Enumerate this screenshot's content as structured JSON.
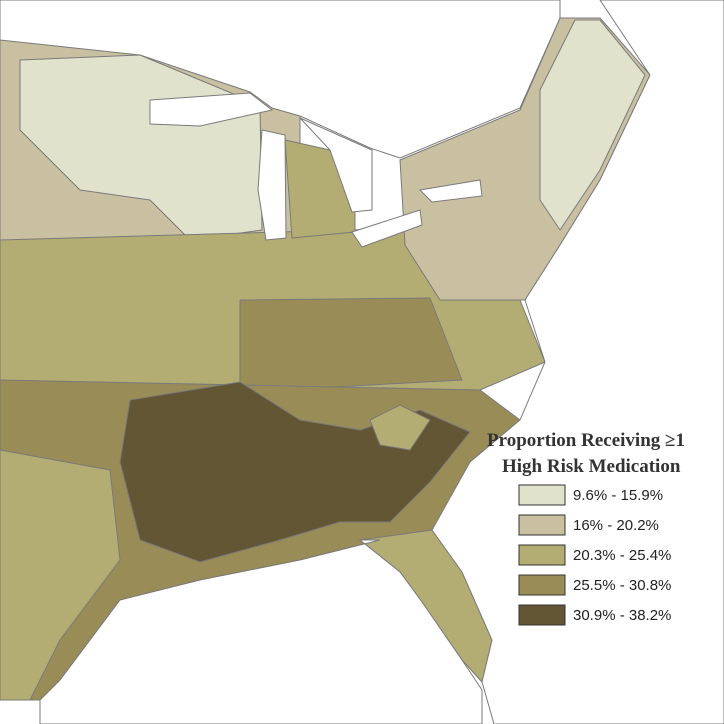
{
  "legend": {
    "title_lines": [
      "Proportion Receiving ≥1",
      "High Risk Medication"
    ],
    "items": [
      {
        "label": "9.6% - 15.9%",
        "color": "#e0e2cc"
      },
      {
        "label": "16% - 20.2%",
        "color": "#c9c0a1"
      },
      {
        "label": "20.3% - 25.4%",
        "color": "#b3ac73"
      },
      {
        "label": "25.5% - 30.8%",
        "color": "#998c57"
      },
      {
        "label": "30.9% - 38.2%",
        "color": "#625634"
      }
    ]
  }
}
